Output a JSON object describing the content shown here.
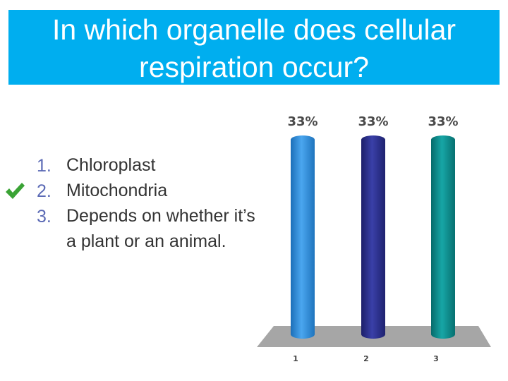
{
  "question": {
    "line1": "In which organelle does cellular",
    "line2": "respiration occur?"
  },
  "answers": [
    {
      "number": "1.",
      "text": "Chloroplast",
      "correct": false
    },
    {
      "number": "2.",
      "text": "Mitochondria",
      "correct": true
    },
    {
      "number": "3.",
      "text": "Depends on whether it’s a plant or an animal.",
      "correct": false
    }
  ],
  "icons": {
    "correct_marker": "checkmark-icon"
  },
  "colors": {
    "banner": "#00aeef",
    "check": "#3aa335"
  },
  "chart_data": {
    "type": "bar",
    "categories": [
      "1",
      "2",
      "3"
    ],
    "values": [
      33,
      33,
      33
    ],
    "data_labels": [
      "33%",
      "33%",
      "33%"
    ],
    "ylim": [
      0,
      33
    ],
    "grid": false,
    "colors": [
      "#2f8fdc",
      "#2b2f8f",
      "#0c8f8f"
    ]
  }
}
